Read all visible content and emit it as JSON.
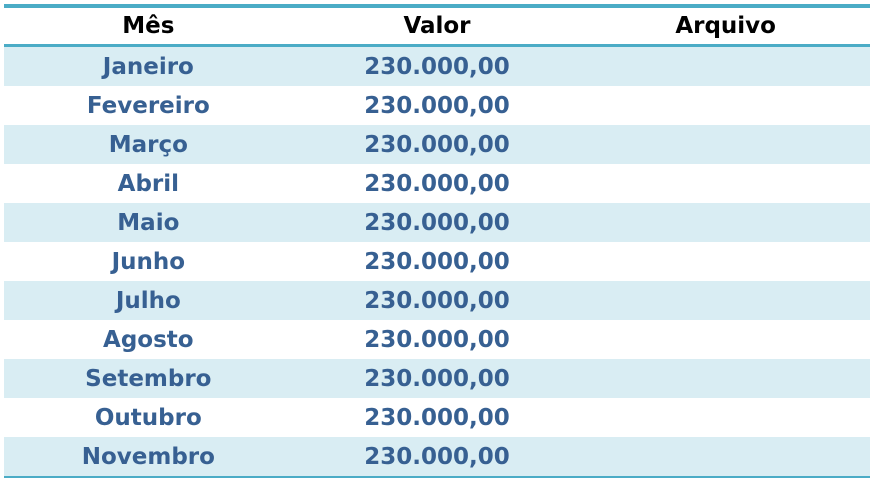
{
  "table": {
    "columns": [
      {
        "label": "Mês"
      },
      {
        "label": "Valor"
      },
      {
        "label": "Arquivo"
      }
    ],
    "rows": [
      {
        "mes": "Janeiro",
        "valor": "230.000,00",
        "arquivo": ""
      },
      {
        "mes": "Fevereiro",
        "valor": "230.000,00",
        "arquivo": ""
      },
      {
        "mes": "Março",
        "valor": "230.000,00",
        "arquivo": ""
      },
      {
        "mes": "Abril",
        "valor": "230.000,00",
        "arquivo": ""
      },
      {
        "mes": "Maio",
        "valor": "230.000,00",
        "arquivo": ""
      },
      {
        "mes": "Junho",
        "valor": "230.000,00",
        "arquivo": ""
      },
      {
        "mes": "Julho",
        "valor": "230.000,00",
        "arquivo": ""
      },
      {
        "mes": "Agosto",
        "valor": "230.000,00",
        "arquivo": ""
      },
      {
        "mes": "Setembro",
        "valor": "230.000,00",
        "arquivo": ""
      },
      {
        "mes": "Outubro",
        "valor": "230.000,00",
        "arquivo": ""
      },
      {
        "mes": "Novembro",
        "valor": "230.000,00",
        "arquivo": ""
      }
    ]
  },
  "colors": {
    "border_accent": "#4BACC6",
    "stripe_background": "#D9EDF3",
    "row_text": "#376092",
    "header_text": "#000000"
  }
}
